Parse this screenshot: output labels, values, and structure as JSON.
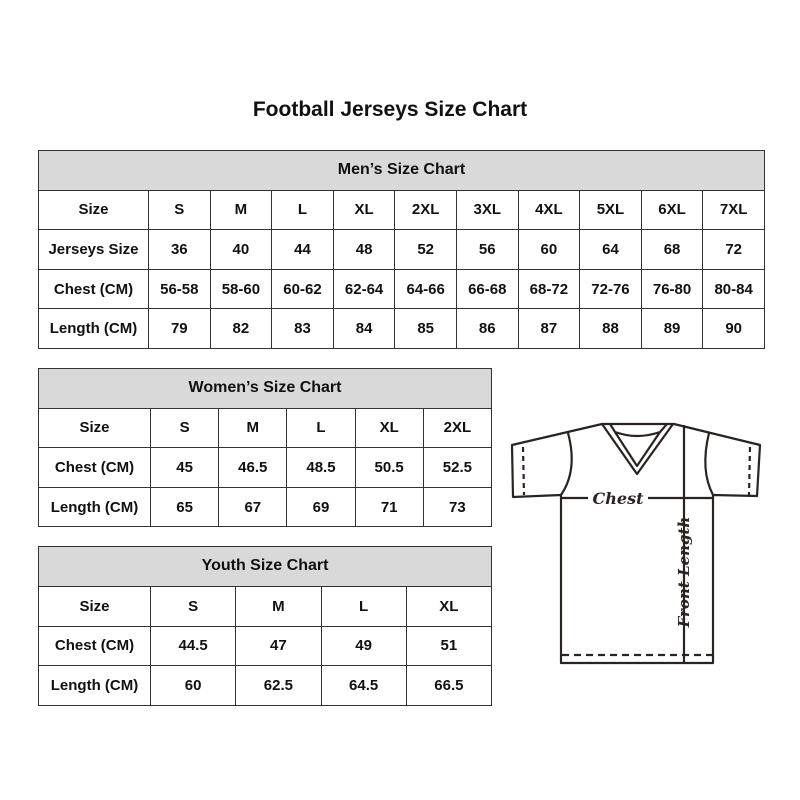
{
  "title": "Football Jerseys Size Chart",
  "men": {
    "caption": "Men’s Size Chart",
    "rows": [
      [
        "Size",
        "S",
        "M",
        "L",
        "XL",
        "2XL",
        "3XL",
        "4XL",
        "5XL",
        "6XL",
        "7XL"
      ],
      [
        "Jerseys Size",
        "36",
        "40",
        "44",
        "48",
        "52",
        "56",
        "60",
        "64",
        "68",
        "72"
      ],
      [
        "Chest (CM)",
        "56-58",
        "58-60",
        "60-62",
        "62-64",
        "64-66",
        "66-68",
        "68-72",
        "72-76",
        "76-80",
        "80-84"
      ],
      [
        "Length (CM)",
        "79",
        "82",
        "83",
        "84",
        "85",
        "86",
        "87",
        "88",
        "89",
        "90"
      ]
    ]
  },
  "women": {
    "caption": "Women’s Size Chart",
    "rows": [
      [
        "Size",
        "S",
        "M",
        "L",
        "XL",
        "2XL"
      ],
      [
        "Chest (CM)",
        "45",
        "46.5",
        "48.5",
        "50.5",
        "52.5"
      ],
      [
        "Length (CM)",
        "65",
        "67",
        "69",
        "71",
        "73"
      ]
    ]
  },
  "youth": {
    "caption": "Youth Size Chart",
    "rows": [
      [
        "Size",
        "S",
        "M",
        "L",
        "XL"
      ],
      [
        "Chest (CM)",
        "44.5",
        "47",
        "49",
        "51"
      ],
      [
        "Length (CM)",
        "60",
        "62.5",
        "64.5",
        "66.5"
      ]
    ]
  },
  "diagram": {
    "chest_label": "Chest",
    "length_label": "Front Length"
  },
  "colors": {
    "header_bg": "#d9d9d9",
    "line": "#2b2320"
  }
}
